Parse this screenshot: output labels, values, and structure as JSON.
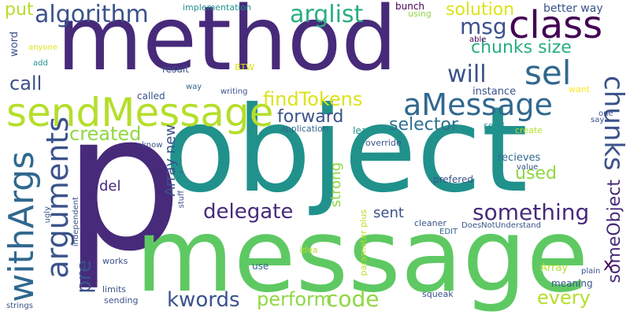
{
  "words": {
    "object": "object",
    "p": "p",
    "method": "method",
    "message": "message",
    "class": "class",
    "sendMessage": "sendMessage",
    "algorithm": "algorithm",
    "arglist": "arglist",
    "sel": "sel",
    "aMessage": "aMessage",
    "arguments": "arguments",
    "withArgs": "withArgs",
    "chunks": "chunks",
    "chunks_size": "chunks size",
    "will": "will",
    "msg": "msg",
    "solution": "solution",
    "better_way": "better way",
    "put": "put",
    "call": "call",
    "created": "created",
    "findTokens": "findTokens",
    "forward": "forward",
    "selector": "selector",
    "delegate": "delegate",
    "something": "something",
    "kwords": "kwords",
    "perform": "perform",
    "code": "code",
    "every": "every",
    "pre": "pre",
    "someObject": "someObject",
    "used": "used",
    "sent": "sent",
    "strong": "strong",
    "del": "del",
    "Array_new": "Array new",
    "x": "x",
    "implementation": "implementation",
    "bunch": "bunch",
    "using": "using",
    "able": "able",
    "anyone": "anyone",
    "add": "add",
    "result": "result",
    "BTW": "BTW",
    "way": "way",
    "writing": "writing",
    "called": "called",
    "instance": "instance",
    "want": "want",
    "one": "one",
    "say": "say",
    "word": "word",
    "application": "application",
    "least": "least",
    "send": "send",
    "create": "create",
    "know": "know",
    "override": "override",
    "recieves": "recieves",
    "value": "value",
    "prefered": "prefered",
    "stuff": "stuff",
    "ugly": "ugly",
    "independent": "independent",
    "parameter_plus": "parameter plus",
    "cleaner": "cleaner",
    "EDIT": "EDIT",
    "DoesNotUnderstand": "DoesNotUnderstand",
    "works": "works",
    "idea": "idea",
    "use": "use",
    "limits": "limits",
    "Array": "Array",
    "meaning": "meaning",
    "plain": "plain",
    "sending": "sending",
    "squeak": "squeak",
    "strings": "strings",
    "tick": "'",
    "dash": "-"
  },
  "palette": {
    "purple_dark": "#440154",
    "purple": "#472a7a",
    "indigo": "#3b528b",
    "blue": "#31688e",
    "teal_blue": "#2c728e",
    "teal": "#21918c",
    "green_teal": "#28ae80",
    "green": "#5ec962",
    "light_green": "#90d743",
    "lime": "#b5de2b",
    "yellow": "#dde318",
    "bright_yellow": "#fde725"
  }
}
